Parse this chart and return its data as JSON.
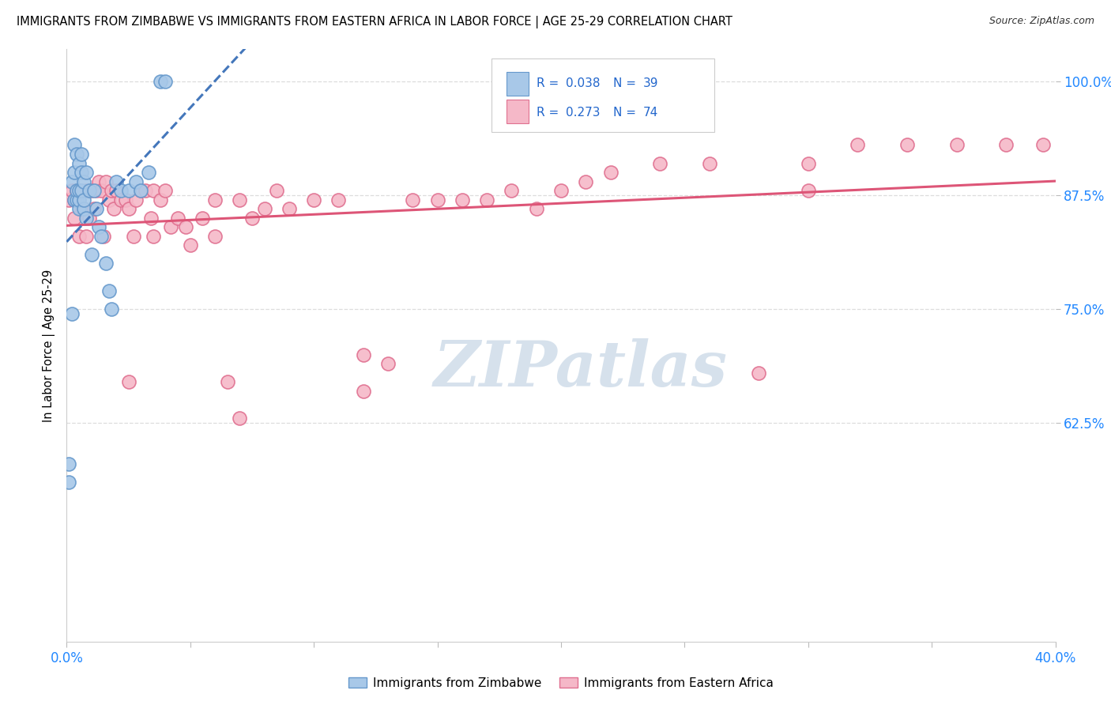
{
  "title": "IMMIGRANTS FROM ZIMBABWE VS IMMIGRANTS FROM EASTERN AFRICA IN LABOR FORCE | AGE 25-29 CORRELATION CHART",
  "source": "Source: ZipAtlas.com",
  "ylabel": "In Labor Force | Age 25-29",
  "x_min": 0.0,
  "x_max": 0.4,
  "y_min": 0.385,
  "y_max": 1.035,
  "x_ticks": [
    0.0,
    0.05,
    0.1,
    0.15,
    0.2,
    0.25,
    0.3,
    0.35,
    0.4
  ],
  "x_tick_labels": [
    "0.0%",
    "",
    "",
    "",
    "",
    "",
    "",
    "",
    "40.0%"
  ],
  "y_ticks": [
    0.625,
    0.75,
    0.875,
    1.0
  ],
  "y_tick_labels": [
    "62.5%",
    "75.0%",
    "87.5%",
    "100.0%"
  ],
  "zimbabwe_color": "#a8c8e8",
  "zimbabwe_edge": "#6699cc",
  "eastern_africa_color": "#f5b8c8",
  "eastern_africa_edge": "#e07090",
  "zimbabwe_R": 0.038,
  "zimbabwe_N": 39,
  "eastern_africa_R": 0.273,
  "eastern_africa_N": 74,
  "zimbabwe_x": [
    0.001,
    0.001,
    0.002,
    0.002,
    0.003,
    0.003,
    0.003,
    0.004,
    0.004,
    0.004,
    0.005,
    0.005,
    0.005,
    0.005,
    0.006,
    0.006,
    0.006,
    0.007,
    0.007,
    0.007,
    0.008,
    0.008,
    0.009,
    0.01,
    0.011,
    0.012,
    0.013,
    0.014,
    0.016,
    0.017,
    0.018,
    0.02,
    0.022,
    0.025,
    0.028,
    0.03,
    0.033,
    0.038,
    0.04
  ],
  "zimbabwe_y": [
    0.56,
    0.58,
    0.745,
    0.89,
    0.87,
    0.9,
    0.93,
    0.87,
    0.88,
    0.92,
    0.86,
    0.87,
    0.88,
    0.91,
    0.88,
    0.9,
    0.92,
    0.86,
    0.87,
    0.89,
    0.85,
    0.9,
    0.88,
    0.81,
    0.88,
    0.86,
    0.84,
    0.83,
    0.8,
    0.77,
    0.75,
    0.89,
    0.88,
    0.88,
    0.89,
    0.88,
    0.9,
    1.0,
    1.0
  ],
  "eastern_africa_x": [
    0.001,
    0.002,
    0.003,
    0.003,
    0.004,
    0.005,
    0.005,
    0.006,
    0.007,
    0.008,
    0.008,
    0.009,
    0.01,
    0.011,
    0.012,
    0.013,
    0.014,
    0.015,
    0.016,
    0.017,
    0.018,
    0.019,
    0.02,
    0.022,
    0.024,
    0.025,
    0.027,
    0.028,
    0.03,
    0.032,
    0.034,
    0.035,
    0.038,
    0.04,
    0.042,
    0.045,
    0.048,
    0.05,
    0.055,
    0.06,
    0.065,
    0.07,
    0.075,
    0.08,
    0.085,
    0.09,
    0.1,
    0.11,
    0.12,
    0.13,
    0.14,
    0.15,
    0.16,
    0.17,
    0.18,
    0.19,
    0.2,
    0.21,
    0.22,
    0.24,
    0.26,
    0.28,
    0.3,
    0.32,
    0.34,
    0.36,
    0.38,
    0.395,
    0.3,
    0.12,
    0.06,
    0.07,
    0.035,
    0.025
  ],
  "eastern_africa_y": [
    0.87,
    0.88,
    0.85,
    0.87,
    0.88,
    0.83,
    0.88,
    0.86,
    0.86,
    0.83,
    0.88,
    0.85,
    0.88,
    0.86,
    0.88,
    0.89,
    0.88,
    0.83,
    0.89,
    0.87,
    0.88,
    0.86,
    0.88,
    0.87,
    0.87,
    0.86,
    0.83,
    0.87,
    0.88,
    0.88,
    0.85,
    0.88,
    0.87,
    0.88,
    0.84,
    0.85,
    0.84,
    0.82,
    0.85,
    0.83,
    0.67,
    0.63,
    0.85,
    0.86,
    0.88,
    0.86,
    0.87,
    0.87,
    0.7,
    0.69,
    0.87,
    0.87,
    0.87,
    0.87,
    0.88,
    0.86,
    0.88,
    0.89,
    0.9,
    0.91,
    0.91,
    0.68,
    0.91,
    0.93,
    0.93,
    0.93,
    0.93,
    0.93,
    0.88,
    0.66,
    0.87,
    0.87,
    0.83,
    0.67
  ],
  "watermark_text": "ZIPatlas",
  "watermark_color": "#c5d5e5",
  "trend_blue_color": "#4477bb",
  "trend_pink_color": "#dd5577",
  "grid_color": "#dddddd",
  "tick_color": "#2288ff",
  "r_n_color": "#2266cc"
}
